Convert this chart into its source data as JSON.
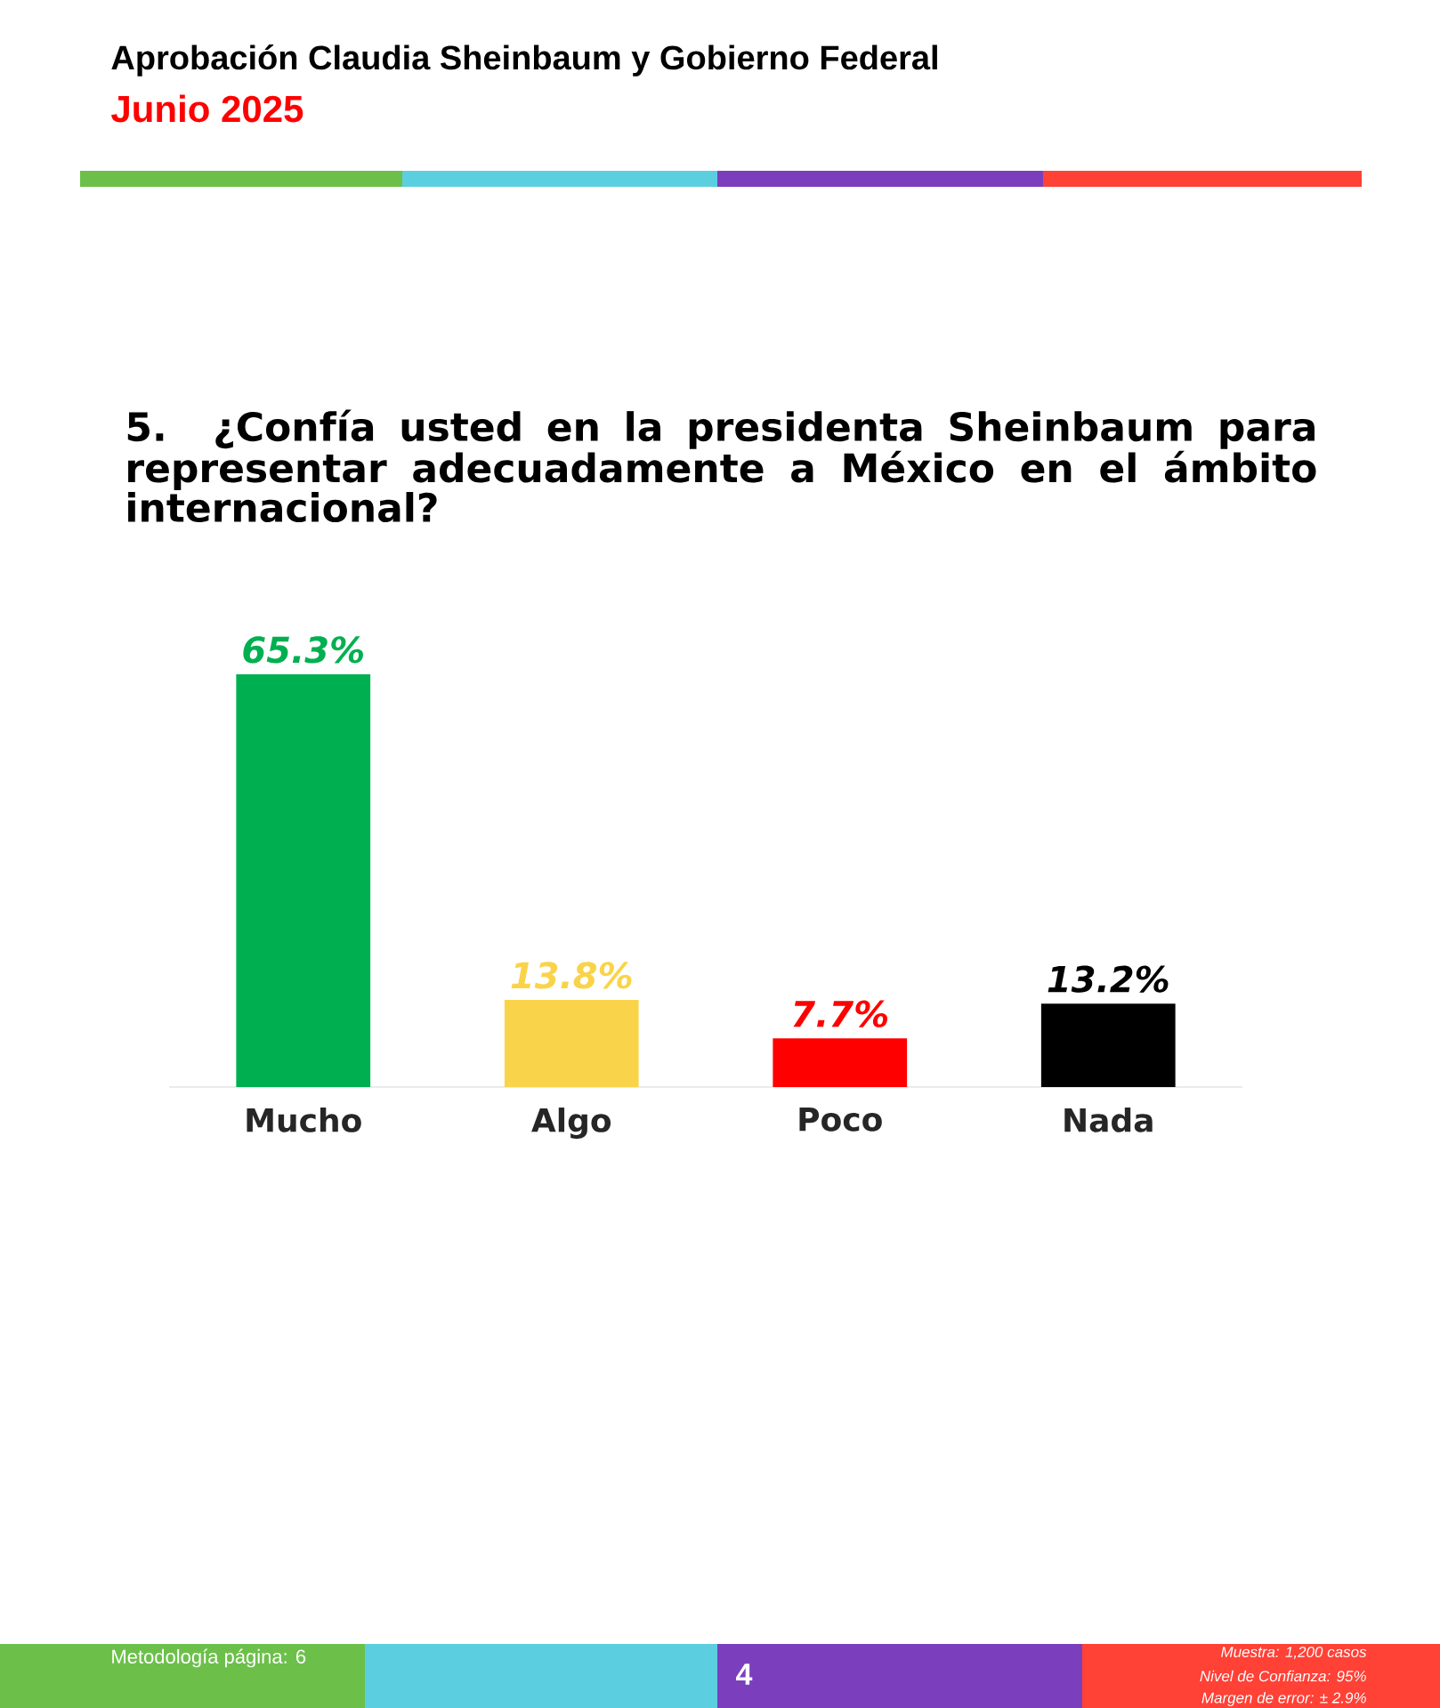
{
  "chart_data": {
    "type": "bar",
    "title": "Aprobación Claudia Sheinbaum y Gobierno Federal",
    "subtitle": "Junio 2025",
    "annotations": [
      "5. ¿Confía usted en la presidenta Sheinbaum para representar adecuadamente a México en el ámbito internacional?",
      "Metodología página: 6",
      "4",
      "Muestra: 1,200 casos",
      "Nivel de Confianza: 95%",
      "Margen de error: ± 2.9%"
    ],
    "categories": [
      "Mucho",
      "Algo",
      "Poco",
      "Nada"
    ],
    "values": [
      65.3,
      13.8,
      7.7,
      13.2
    ],
    "colors": [
      "#00b050",
      "#f9d44a",
      "#ff0000",
      "#000000"
    ],
    "value_labels": [
      "65.3%",
      "13.8%",
      "7.7%",
      "13.2%"
    ]
  }
}
